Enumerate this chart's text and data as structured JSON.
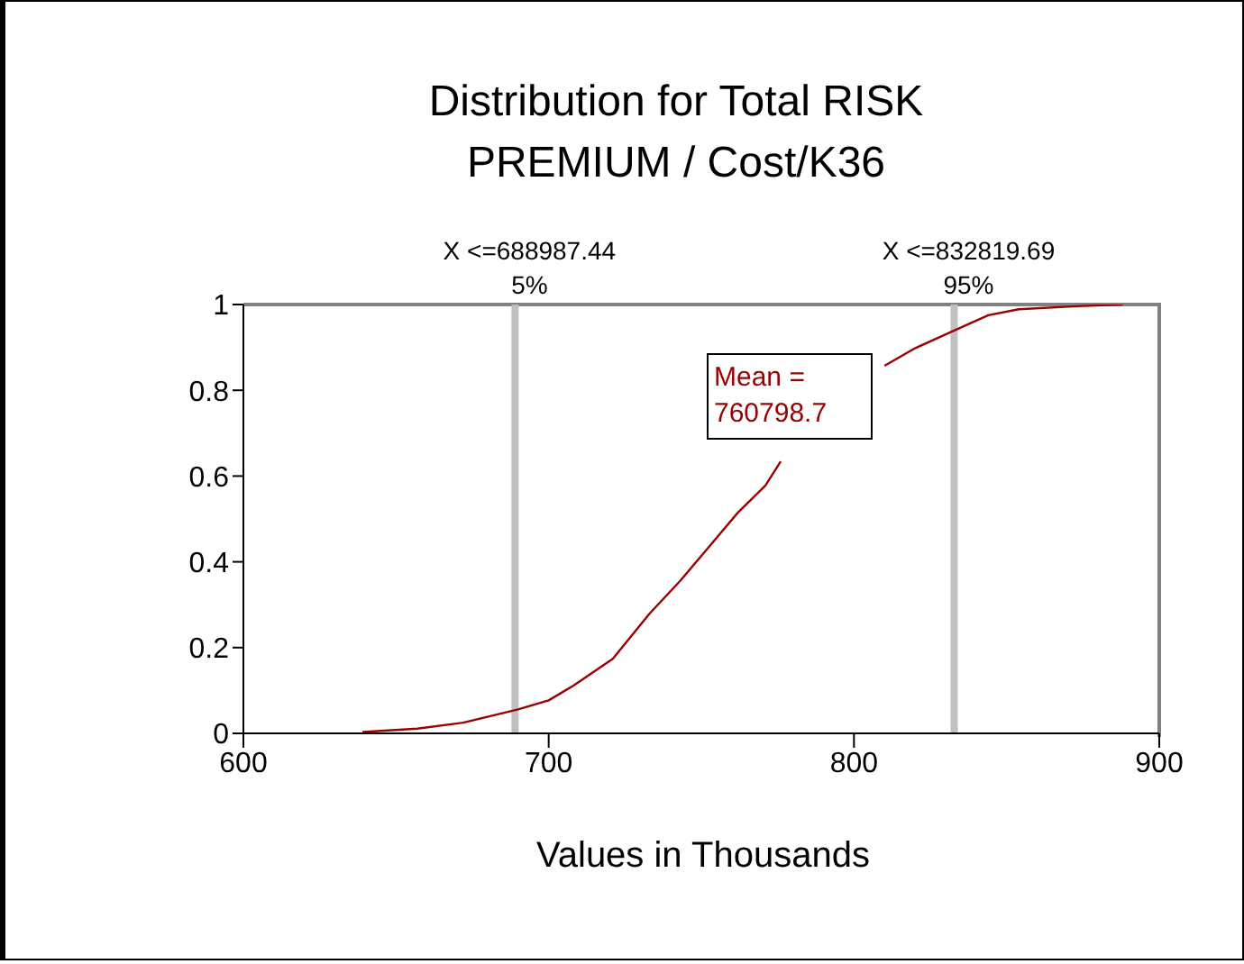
{
  "chart_data": {
    "type": "line",
    "title": "Distribution for Total RISK PREMIUM / Cost/K36",
    "xlabel": "Values in Thousands",
    "x": [
      639,
      657,
      672,
      690,
      700,
      708,
      721,
      733,
      743,
      753,
      762,
      771,
      776,
      790,
      801,
      810,
      820,
      833,
      844,
      854,
      873,
      888
    ],
    "series": [
      {
        "color": "#990000",
        "values": [
          0.003,
          0.011,
          0.025,
          0.056,
          0.077,
          0.111,
          0.174,
          0.279,
          0.355,
          0.439,
          0.515,
          0.578,
          0.634,
          null,
          null,
          0.857,
          0.898,
          0.94,
          0.975,
          0.989,
          0.996,
          1.0
        ]
      }
    ],
    "xlim": [
      600,
      900
    ],
    "xticks": [
      600,
      700,
      800,
      900
    ],
    "ylim": [
      0,
      1
    ],
    "yticks": [
      0,
      0.2,
      0.4,
      0.6,
      0.8,
      1
    ],
    "ref_lines": [
      {
        "axis": "x",
        "value": 688.98744,
        "label": "X <=688987.44\n5%",
        "color": "#c0c0c0"
      },
      {
        "axis": "x",
        "value": 832.81969,
        "label": "X <=832819.69\n95%",
        "color": "#c0c0c0"
      }
    ],
    "annotations": [
      "Mean = 760798.7"
    ],
    "marker": "none",
    "line_style": "solid"
  }
}
